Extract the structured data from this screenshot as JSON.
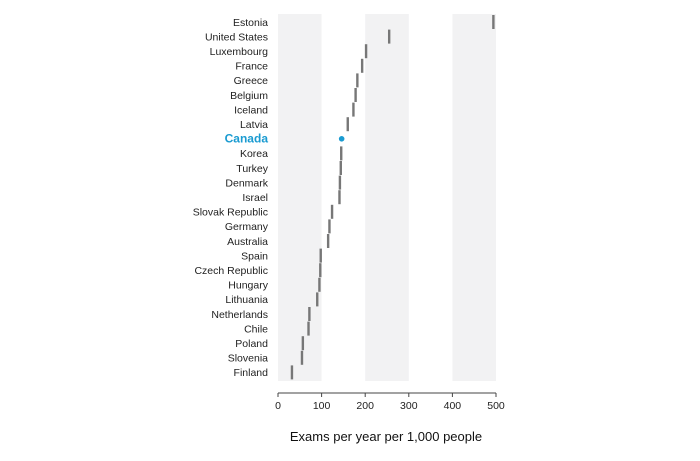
{
  "chart_data": {
    "type": "dot",
    "title": "",
    "xlabel": "Exams per year per 1,000 people",
    "ylabel": "",
    "xlim": [
      0,
      500
    ],
    "xticks": [
      0,
      100,
      200,
      300,
      400,
      500
    ],
    "bands": [
      [
        0,
        100
      ],
      [
        200,
        300
      ],
      [
        400,
        500
      ]
    ],
    "highlight": "Canada",
    "colors": {
      "default": "#777777",
      "highlight": "#1a9bd1",
      "band": "#f2f2f3"
    },
    "categories": [
      "Estonia",
      "United States",
      "Luxembourg",
      "France",
      "Greece",
      "Belgium",
      "Iceland",
      "Latvia",
      "Canada",
      "Korea",
      "Turkey",
      "Denmark",
      "Israel",
      "Slovak Republic",
      "Germany",
      "Australia",
      "Spain",
      "Czech Republic",
      "Hungary",
      "Lithuania",
      "Netherlands",
      "Chile",
      "Poland",
      "Slovenia",
      "Finland"
    ],
    "values": [
      494,
      255,
      202,
      193,
      182,
      178,
      173,
      160,
      146,
      145,
      144,
      142,
      141,
      124,
      118,
      115,
      98,
      97,
      95,
      90,
      72,
      70,
      57,
      55,
      32
    ]
  }
}
